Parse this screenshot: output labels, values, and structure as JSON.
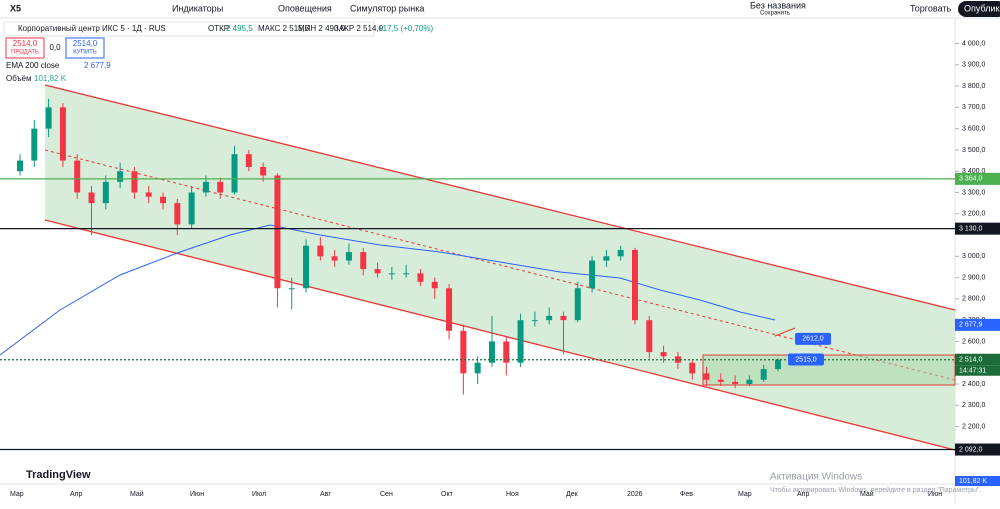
{
  "toolbar": {
    "symbol": "X5",
    "indicators": "Индикаторы",
    "alerts": "Оповещения",
    "replay": "Симулятор рынка",
    "layout": "Без названия",
    "save": "Сохранить",
    "trade": "Торговать",
    "publish": "Опубликовать"
  },
  "legend": {
    "title": "Корпоративный центр ИКС 5 · 1Д · RUS",
    "open": "ОТКР",
    "open_value": "2 495,5",
    "high": "МАКС 2 515,5",
    "low": "МИН 2 490,0",
    "close": "ЗАКР 2 514,0",
    "change": "+17,5 (+0,70%)",
    "sell_price": "2514,0",
    "sell": "ПРОДАТЬ",
    "spread": "0,0",
    "buy_price": "2514,0",
    "buy": "КУПИТЬ",
    "ema": "EMA 200 close",
    "ema_value": "2 677,9",
    "volume": "Объём",
    "volume_value": "101,82 K"
  },
  "chart_data": {
    "type": "candlestick",
    "ylim": [
      1930,
      4120
    ],
    "yticks": [
      {
        "value": 4000,
        "label": "4 000,0"
      },
      {
        "value": 3900,
        "label": "3 900,0"
      },
      {
        "value": 3800,
        "label": "3 800,0"
      },
      {
        "value": 3700,
        "label": "3 700,0"
      },
      {
        "value": 3600,
        "label": "3 600,0"
      },
      {
        "value": 3500,
        "label": "3 500,0"
      },
      {
        "value": 3400,
        "label": "3 400,0"
      },
      {
        "value": 3300,
        "label": "3 300,0"
      },
      {
        "value": 3200,
        "label": "3 200,0"
      },
      {
        "value": 3000,
        "label": "3 000,0"
      },
      {
        "value": 2900,
        "label": "2 900,0"
      },
      {
        "value": 2800,
        "label": "2 800,0"
      },
      {
        "value": 2700,
        "label": "2 700,0"
      },
      {
        "value": 2600,
        "label": "2 600,0"
      },
      {
        "value": 2400,
        "label": "2 400,0"
      },
      {
        "value": 2300,
        "label": "2 300,0"
      },
      {
        "value": 2200,
        "label": "2 200,0"
      }
    ],
    "xlabels": [
      "Мар",
      "Апр",
      "Май",
      "Июн",
      "Июл",
      "Авг",
      "Сен",
      "Окт",
      "Ноя",
      "Дек",
      "2026",
      "Фев",
      "Мар",
      "Апр",
      "Май",
      "Июн"
    ],
    "candles": [
      [
        3400,
        3480,
        3380,
        3450
      ],
      [
        3450,
        3640,
        3420,
        3600
      ],
      [
        3600,
        3740,
        3560,
        3700
      ],
      [
        3700,
        3720,
        3420,
        3450
      ],
      [
        3450,
        3480,
        3270,
        3300
      ],
      [
        3300,
        3330,
        3100,
        3250
      ],
      [
        3250,
        3380,
        3220,
        3350
      ],
      [
        3350,
        3440,
        3320,
        3400
      ],
      [
        3400,
        3420,
        3270,
        3300
      ],
      [
        3300,
        3330,
        3250,
        3280
      ],
      [
        3280,
        3300,
        3220,
        3250
      ],
      [
        3250,
        3270,
        3100,
        3150
      ],
      [
        3150,
        3330,
        3130,
        3300
      ],
      [
        3300,
        3380,
        3280,
        3350
      ],
      [
        3350,
        3370,
        3270,
        3300
      ],
      [
        3300,
        3520,
        3290,
        3480
      ],
      [
        3480,
        3500,
        3400,
        3420
      ],
      [
        3420,
        3440,
        3350,
        3380
      ],
      [
        3380,
        3390,
        2760,
        2850
      ],
      [
        2850,
        2900,
        2750,
        2850
      ],
      [
        2850,
        3080,
        2830,
        3050
      ],
      [
        3050,
        3090,
        2980,
        3000
      ],
      [
        3000,
        3030,
        2950,
        2980
      ],
      [
        2980,
        3060,
        2960,
        3020
      ],
      [
        3020,
        3040,
        2910,
        2940
      ],
      [
        2940,
        2970,
        2900,
        2920
      ],
      [
        2920,
        2950,
        2890,
        2920
      ],
      [
        2920,
        2960,
        2900,
        2920
      ],
      [
        2920,
        2940,
        2860,
        2880
      ],
      [
        2880,
        2900,
        2800,
        2850
      ],
      [
        2850,
        2870,
        2610,
        2650
      ],
      [
        2650,
        2680,
        2350,
        2450
      ],
      [
        2450,
        2530,
        2400,
        2500
      ],
      [
        2500,
        2720,
        2480,
        2600
      ],
      [
        2600,
        2620,
        2440,
        2500
      ],
      [
        2500,
        2730,
        2480,
        2700
      ],
      [
        2700,
        2740,
        2670,
        2700
      ],
      [
        2700,
        2760,
        2680,
        2720
      ],
      [
        2720,
        2740,
        2540,
        2700
      ],
      [
        2700,
        2880,
        2690,
        2850
      ],
      [
        2850,
        3000,
        2830,
        2980
      ],
      [
        2980,
        3030,
        2950,
        3000
      ],
      [
        3000,
        3050,
        2980,
        3030
      ],
      [
        3030,
        3040,
        2680,
        2700
      ],
      [
        2700,
        2720,
        2520,
        2550
      ],
      [
        2550,
        2580,
        2500,
        2530
      ],
      [
        2530,
        2550,
        2470,
        2500
      ],
      [
        2500,
        2510,
        2420,
        2450
      ],
      [
        2450,
        2480,
        2390,
        2420
      ],
      [
        2420,
        2450,
        2390,
        2410
      ],
      [
        2410,
        2440,
        2380,
        2400
      ],
      [
        2400,
        2440,
        2390,
        2420
      ],
      [
        2420,
        2490,
        2410,
        2470
      ],
      [
        2470,
        2520,
        2460,
        2514
      ]
    ],
    "levels": [
      {
        "value": 3364,
        "label": "3 364,0",
        "color": "#4caf50"
      },
      {
        "value": 3130,
        "label": "3 130,0",
        "color": "#131722"
      },
      {
        "value": 2677.9,
        "label": "2 677,9",
        "color": "#2962ff"
      },
      {
        "value": 2514,
        "label": "2 514,0",
        "color": "#1e6b3a"
      },
      {
        "value": 2092,
        "label": "2 092,0",
        "color": "#131722"
      }
    ],
    "countdown": "14:47:31",
    "volume_label": "101,82 K",
    "annotations": [
      {
        "value": 2612,
        "label": "2612,0"
      },
      {
        "value": 2515,
        "label": "2515,0"
      }
    ],
    "watermark": "Активация Windows",
    "watermark_sub": "Чтобы активировать Windows, перейдите в раздел \"Параметры\".",
    "logo": "TradingView"
  }
}
